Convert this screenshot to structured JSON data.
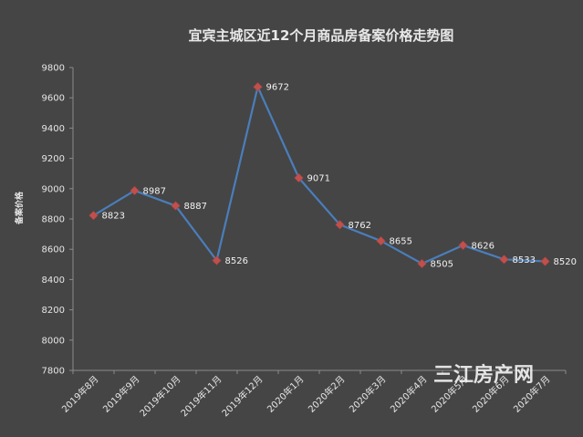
{
  "chart_data": {
    "type": "line",
    "title": "宜宾主城区近12个月商品房备案价格走势图",
    "ylabel": "备案价格",
    "xlabel": "",
    "ylim": [
      7800,
      9800
    ],
    "yticks": [
      7800,
      8000,
      8200,
      8400,
      8600,
      8800,
      9000,
      9200,
      9400,
      9600,
      9800
    ],
    "categories": [
      "2019年8月",
      "2019年9月",
      "2019年10月",
      "2019年11月",
      "2019年12月",
      "2020年1月",
      "2020年2月",
      "2020年3月",
      "2020年4月",
      "2020年5月",
      "2020年6月",
      "2020年7月"
    ],
    "series": [
      {
        "values": [
          8823,
          8987,
          8887,
          8526,
          9672,
          9071,
          8762,
          8655,
          8505,
          8626,
          8533,
          8520
        ]
      }
    ],
    "grid": false,
    "legend": "none",
    "data_labels": true
  },
  "colors": {
    "background": "#454545",
    "line": "#4a7ebb",
    "marker": "#c0504d",
    "axis": "#8c8c8c",
    "text": "#e6e6e6"
  },
  "watermark": "三江房产网"
}
